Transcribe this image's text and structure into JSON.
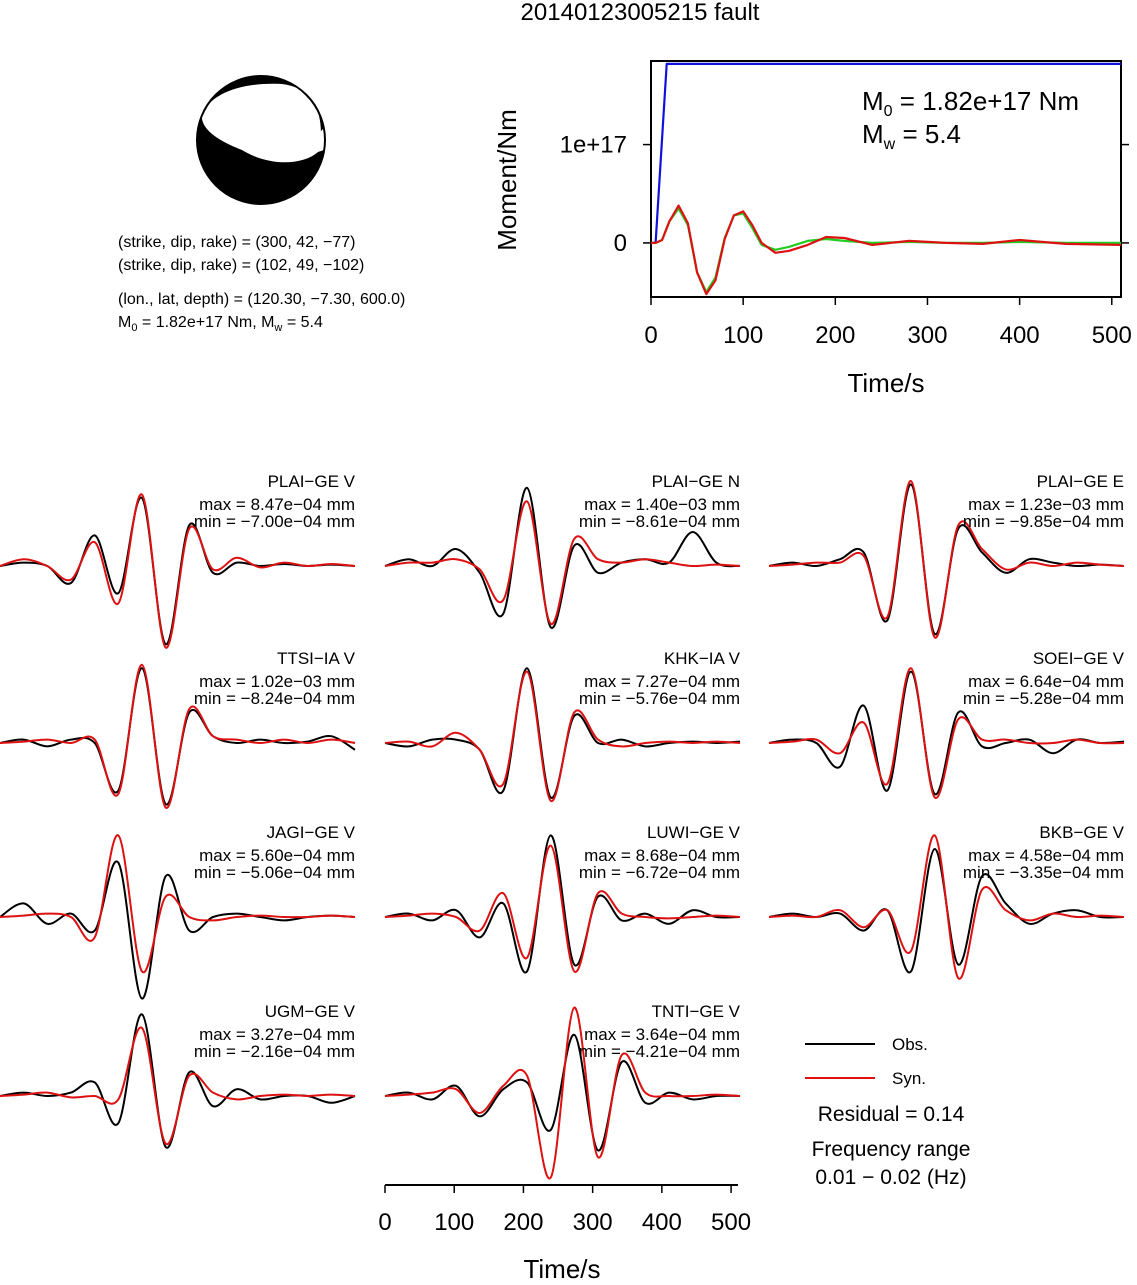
{
  "title": "20140123005215 fault",
  "mechanism": {
    "line1": "(strike, dip, rake) = (300, 42, −77)",
    "line2": "(strike, dip, rake) = (102, 49, −102)",
    "line3": "(lon., lat, depth) = (120.30, −7.30, 600.0)",
    "m0_text": "M",
    "m0_sub": "0",
    "m0_rest": " = 1.82e+17 Nm, M",
    "mw_sub": "w",
    "mw_rest": " = 5.4"
  },
  "moment_plot": {
    "ylabel": "Moment/Nm",
    "xlabel": "Time/s",
    "annot_m0_main": "M",
    "annot_m0_sub": "0",
    "annot_m0_rest": " = 1.82e+17 Nm",
    "annot_mw_main": "M",
    "annot_mw_sub": "w",
    "annot_mw_rest": " = 5.4"
  },
  "legend": {
    "obs": "Obs.",
    "syn": "Syn.",
    "residual": "Residual = 0.14",
    "freq_label": "Frequency range",
    "freq_value": "0.01 − 0.02 (Hz)"
  },
  "wave_axis": {
    "xlabel": "Time/s"
  },
  "colors": {
    "obs": "#000000",
    "syn": "#dd1111",
    "cumulative": "#1111dd",
    "rate_green": "#22cc22"
  },
  "chart_data": [
    {
      "type": "line",
      "title": "",
      "xlabel": "Time/s",
      "ylabel": "Moment/Nm",
      "xlim": [
        0,
        510
      ],
      "ylim": [
        -5.5e+16,
        1.85e+17
      ],
      "xticks": [
        0,
        100,
        200,
        300,
        400,
        500
      ],
      "yticks": [
        {
          "value": 0,
          "label": "0"
        },
        {
          "value": 1e+17,
          "label": "1e+17"
        }
      ],
      "series": [
        {
          "color": "#1111dd",
          "x": [
            0,
            5,
            17,
            510
          ],
          "y": [
            0,
            0,
            1.82e+17,
            1.82e+17
          ]
        },
        {
          "color": "#22cc22",
          "x": [
            0,
            5,
            12,
            20,
            30,
            40,
            50,
            60,
            70,
            80,
            90,
            100,
            110,
            120,
            135,
            150,
            170,
            190,
            210,
            240,
            280,
            320,
            360,
            400,
            450,
            510
          ],
          "y": [
            0,
            0,
            3000000000000000.0,
            2.2e+16,
            3.5e+16,
            1.8e+16,
            -3e+16,
            -5e+16,
            -3.5e+16,
            5000000000000000.0,
            2.8e+16,
            3e+16,
            1.5e+16,
            -2000000000000000.0,
            -7000000000000000.0,
            -4000000000000000.0,
            2000000000000000.0,
            4000000000000000.0,
            2000000000000000.0,
            0.0,
            1000000000000000.0,
            0.0,
            0.0,
            1000000000000000.0,
            0.0,
            0.0
          ]
        },
        {
          "color": "#dd1111",
          "x": [
            0,
            5,
            12,
            20,
            30,
            40,
            50,
            60,
            70,
            80,
            90,
            100,
            110,
            120,
            135,
            150,
            170,
            190,
            210,
            240,
            280,
            320,
            360,
            400,
            450,
            510
          ],
          "y": [
            0,
            0,
            3000000000000000.0,
            2.2e+16,
            3.8e+16,
            2e+16,
            -3e+16,
            -5.2e+16,
            -3.8e+16,
            4000000000000000.0,
            2.8e+16,
            3.2e+16,
            1.8e+16,
            0.0,
            -1e+16,
            -8000000000000000.0,
            -2000000000000000.0,
            6000000000000000.0,
            5000000000000000.0,
            -2000000000000000.0,
            2000000000000000.0,
            0.0,
            -1000000000000000.0,
            3000000000000000.0,
            -1000000000000000.0,
            -2000000000000000.0
          ]
        }
      ]
    },
    {
      "type": "line",
      "xlabel": "Time/s",
      "xlim": [
        0,
        510
      ],
      "xticks": [
        0,
        100,
        200,
        300,
        400,
        500
      ],
      "stations": [
        {
          "name": "PLAI−GE V",
          "max": "max = 8.47e−04 mm",
          "min": "min = −7.00e−04 mm",
          "obs": [
            0.0,
            0.05,
            0.0,
            -0.25,
            0.45,
            -0.4,
            1.0,
            -1.15,
            0.6,
            -0.1,
            0.05,
            0.0,
            0.03,
            0.0,
            0.02,
            0.0
          ],
          "syn": [
            0.0,
            0.1,
            0.0,
            -0.2,
            0.35,
            -0.55,
            1.05,
            -1.2,
            0.55,
            -0.05,
            0.12,
            -0.02,
            0.05,
            0.0,
            0.03,
            0.0
          ]
        },
        {
          "name": "PLAI−GE N",
          "max": "max = 1.40e−03 mm",
          "min": "min = −8.61e−04 mm",
          "obs": [
            0.0,
            0.1,
            0.0,
            0.25,
            -0.1,
            -0.7,
            1.15,
            -0.9,
            0.3,
            -0.1,
            0.05,
            0.1,
            0.05,
            0.5,
            0.05,
            0.0
          ],
          "syn": [
            0.0,
            0.05,
            0.05,
            0.1,
            -0.05,
            -0.5,
            0.95,
            -0.85,
            0.4,
            0.1,
            0.05,
            0.1,
            0.05,
            0.0,
            0.02,
            0.0
          ]
        },
        {
          "name": "PLAI−GE E",
          "max": "max = 1.23e−03 mm",
          "min": "min = −9.85e−04 mm",
          "obs": [
            0.0,
            0.05,
            0.0,
            0.1,
            0.2,
            -0.8,
            1.2,
            -1.0,
            0.55,
            0.2,
            -0.1,
            0.1,
            0.05,
            0.0,
            0.02,
            0.0
          ],
          "syn": [
            0.0,
            0.02,
            0.05,
            0.05,
            0.15,
            -0.75,
            1.25,
            -1.05,
            0.6,
            0.25,
            -0.05,
            0.05,
            0.0,
            0.05,
            0.02,
            0.0
          ]
        },
        {
          "name": "TTSI−IA V",
          "max": "max = 1.02e−03 mm",
          "min": "min = −8.24e−04 mm",
          "obs": [
            0.0,
            0.05,
            -0.05,
            0.05,
            0.0,
            -0.7,
            1.1,
            -0.9,
            0.45,
            0.1,
            0.0,
            0.05,
            0.0,
            0.02,
            0.1,
            -0.1
          ],
          "syn": [
            0.0,
            0.02,
            0.05,
            0.0,
            0.05,
            -0.75,
            1.15,
            -0.95,
            0.5,
            0.1,
            0.05,
            0.0,
            0.05,
            0.0,
            0.05,
            0.0
          ]
        },
        {
          "name": "KHK−IA V",
          "max": "max = 7.27e−04 mm",
          "min": "min = −5.76e−04 mm",
          "obs": [
            0.0,
            -0.05,
            0.05,
            0.05,
            -0.1,
            -0.7,
            1.1,
            -0.8,
            0.4,
            0.0,
            0.05,
            -0.05,
            0.0,
            0.02,
            0.0,
            0.02
          ],
          "syn": [
            0.0,
            0.02,
            -0.05,
            0.15,
            -0.1,
            -0.6,
            1.05,
            -0.85,
            0.45,
            0.05,
            -0.05,
            0.0,
            0.02,
            0.0,
            0.02,
            0.0
          ]
        },
        {
          "name": "SOEI−GE V",
          "max": "max = 6.64e−04 mm",
          "min": "min = −5.28e−04 mm",
          "obs": [
            0.0,
            0.05,
            0.0,
            -0.35,
            0.55,
            -0.7,
            1.05,
            -0.75,
            0.45,
            -0.05,
            0.0,
            0.05,
            -0.15,
            0.05,
            0.0,
            0.02
          ],
          "syn": [
            0.0,
            0.02,
            0.05,
            -0.15,
            0.3,
            -0.6,
            1.1,
            -0.8,
            0.35,
            0.05,
            0.05,
            0.0,
            0.0,
            0.05,
            0.0,
            0.0
          ]
        },
        {
          "name": "JAGI−GE V",
          "max": "max = 5.60e−04 mm",
          "min": "min = −5.06e−04 mm",
          "obs": [
            0.0,
            0.2,
            -0.1,
            0.05,
            -0.2,
            0.8,
            -1.2,
            0.6,
            -0.2,
            0.0,
            0.05,
            0.0,
            -0.05,
            0.0,
            0.02,
            0.0
          ],
          "syn": [
            0.0,
            0.02,
            0.05,
            0.0,
            -0.3,
            1.2,
            -0.8,
            0.3,
            0.0,
            -0.05,
            0.0,
            0.02,
            0.0,
            0.0,
            0.02,
            0.0
          ]
        },
        {
          "name": "LUWI−GE V",
          "max": "max = 8.68e−04 mm",
          "min": "min = −6.72e−04 mm",
          "obs": [
            0.0,
            0.05,
            -0.05,
            0.1,
            -0.3,
            0.2,
            -0.8,
            1.2,
            -0.7,
            0.3,
            -0.05,
            0.05,
            -0.1,
            0.1,
            0.0,
            0.0
          ],
          "syn": [
            0.0,
            0.02,
            0.05,
            0.0,
            -0.2,
            0.35,
            -0.6,
            1.05,
            -0.8,
            0.35,
            0.05,
            0.0,
            -0.02,
            0.0,
            0.02,
            0.0
          ]
        },
        {
          "name": "BKB−GE V",
          "max": "max = 4.58e−04 mm",
          "min": "min = −3.35e−04 mm",
          "obs": [
            0.0,
            0.05,
            0.0,
            0.05,
            -0.2,
            0.1,
            -0.8,
            1.0,
            -0.7,
            0.6,
            0.2,
            -0.1,
            0.05,
            0.1,
            0.0,
            0.0
          ],
          "syn": [
            0.0,
            0.02,
            0.0,
            0.1,
            -0.15,
            0.1,
            -0.5,
            1.2,
            -0.9,
            0.4,
            0.1,
            -0.05,
            0.05,
            0.0,
            0.02,
            0.0
          ]
        },
        {
          "name": "UGM−GE V",
          "max": "max = 3.27e−04 mm",
          "min": "min = −2.16e−04 mm",
          "obs": [
            0.0,
            0.05,
            0.0,
            0.05,
            0.2,
            -0.4,
            1.2,
            -0.75,
            0.35,
            -0.15,
            0.1,
            -0.05,
            0.0,
            0.0,
            -0.1,
            0.0
          ],
          "syn": [
            0.0,
            0.02,
            0.05,
            -0.02,
            0.0,
            -0.05,
            1.0,
            -0.7,
            0.3,
            0.05,
            -0.05,
            0.0,
            0.02,
            0.0,
            0.02,
            0.0
          ]
        },
        {
          "name": "TNTI−GE V",
          "max": "max = 3.64e−04 mm",
          "min": "min = −4.21e−04 mm",
          "obs": [
            0.0,
            0.05,
            -0.05,
            0.15,
            -0.3,
            0.1,
            0.2,
            -0.5,
            0.9,
            -0.8,
            0.5,
            -0.1,
            0.05,
            -0.05,
            0.0,
            0.0
          ],
          "syn": [
            0.0,
            0.02,
            0.05,
            0.1,
            -0.25,
            0.15,
            0.3,
            -1.2,
            1.3,
            -0.9,
            0.6,
            0.05,
            0.0,
            0.0,
            0.02,
            0.0
          ]
        }
      ]
    }
  ]
}
